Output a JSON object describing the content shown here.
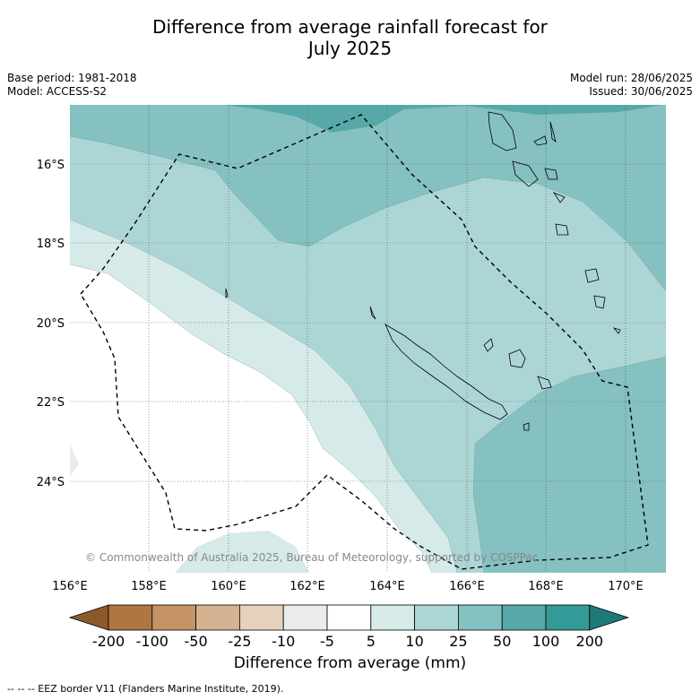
{
  "title_line1": "Difference from average rainfall forecast for",
  "title_line2": "July 2025",
  "meta": {
    "base_period": "Base period: 1981-2018",
    "model": "Model: ACCESS-S2",
    "model_run": "Model run: 28/06/2025",
    "issued": "Issued: 30/06/2025"
  },
  "copyright": "© Commonwealth of Australia 2025, Bureau of Meteorology, supported by COSPPac",
  "lat_labels": [
    "16°S",
    "18°S",
    "20°S",
    "22°S",
    "24°S"
  ],
  "lon_labels": [
    "156°E",
    "158°E",
    "160°E",
    "162°E",
    "164°E",
    "166°E",
    "168°E",
    "170°E"
  ],
  "colorbar": {
    "ticks": [
      "-200",
      "-100",
      "-50",
      "-25",
      "-10",
      "-5",
      "5",
      "10",
      "25",
      "50",
      "100",
      "200"
    ],
    "colors": [
      "#8c5a2a",
      "#ae7640",
      "#c49468",
      "#d5b291",
      "#e6d1bd",
      "#ebebe9",
      "#ffffff",
      "#d5eae9",
      "#acd6d5",
      "#84c1c0",
      "#56a9a8",
      "#339a97",
      "#1e7a77"
    ],
    "label": "Difference from average (mm)"
  },
  "footer": "--  --  -- EEZ border V11 (Flanders Marine Institute, 2019)."
}
